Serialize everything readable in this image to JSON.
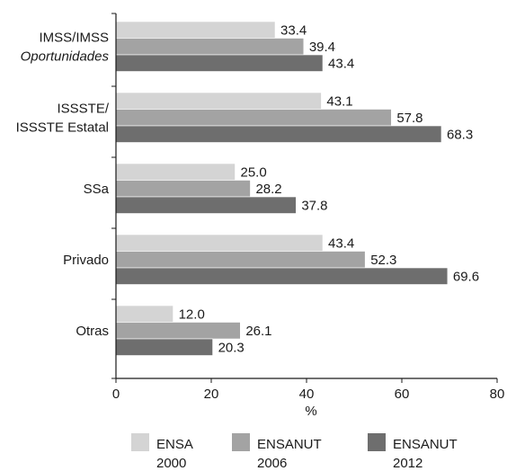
{
  "chart_data": {
    "type": "bar",
    "orientation": "horizontal",
    "categories": [
      {
        "lines": [
          "IMSS/IMSS",
          "Oportunidades"
        ],
        "italic_line": 1
      },
      {
        "lines": [
          "ISSSTE/",
          "ISSSTE Estatal"
        ],
        "italic_line": -1
      },
      {
        "lines": [
          "SSa"
        ],
        "italic_line": -1
      },
      {
        "lines": [
          "Privado"
        ],
        "italic_line": -1
      },
      {
        "lines": [
          "Otras"
        ],
        "italic_line": -1
      }
    ],
    "series": [
      {
        "name": "ENSA 2000",
        "name_lines": [
          "ENSA",
          "2000"
        ],
        "color": "#d4d4d4",
        "values": [
          33.4,
          43.1,
          25.0,
          43.4,
          12.0
        ]
      },
      {
        "name": "ENSANUT 2006",
        "name_lines": [
          "ENSANUT",
          "2006"
        ],
        "color": "#a3a3a3",
        "values": [
          39.4,
          57.8,
          28.2,
          52.3,
          26.1
        ]
      },
      {
        "name": "ENSANUT 2012",
        "name_lines": [
          "ENSANUT",
          "2012"
        ],
        "color": "#6e6e6e",
        "values": [
          43.4,
          68.3,
          37.8,
          69.6,
          20.3
        ]
      }
    ],
    "value_labels": [
      [
        "33.4",
        "43.1",
        "25.0",
        "43.4",
        "12.0"
      ],
      [
        "39.4",
        "57.8",
        "28.2",
        "52.3",
        "26.1"
      ],
      [
        "43.4",
        "68.3",
        "37.8",
        "69.6",
        "20.3"
      ]
    ],
    "xlim": [
      0,
      80
    ],
    "xticks": [
      0,
      20,
      40,
      60,
      80
    ],
    "xtick_labels": [
      "0",
      "20",
      "40",
      "60",
      "80"
    ],
    "xlabel": "%",
    "legend_position": "bottom",
    "grid": false
  }
}
